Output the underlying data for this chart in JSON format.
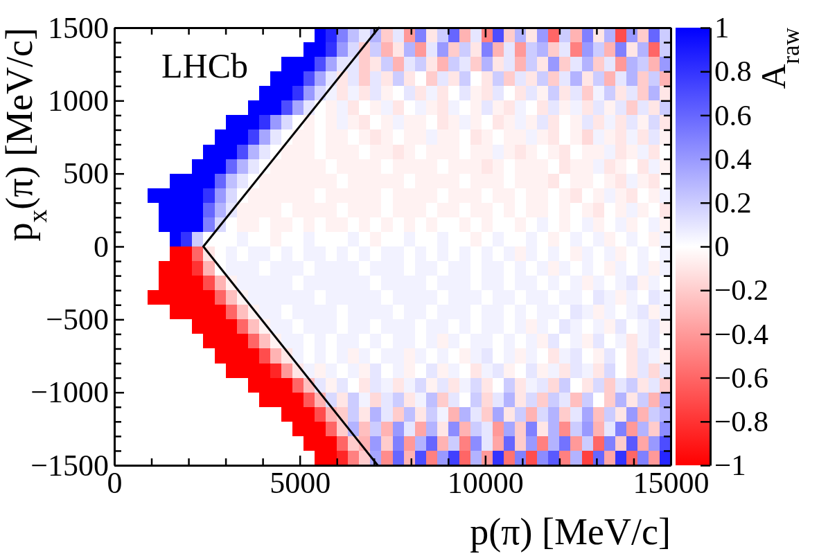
{
  "chart_data": {
    "type": "heatmap",
    "xlabel": "p(π) [MeV/c]",
    "ylabel": "p$_{x}$(π) [MeV/c]",
    "clabel": "A$_{raw}$",
    "annotations": [
      "LHCb"
    ],
    "xlim": [
      0,
      15000
    ],
    "xticks": [
      0,
      {
        "value": 1000,
        "label": null
      },
      {
        "value": 2000,
        "label": null
      },
      {
        "value": 3000,
        "label": null
      },
      {
        "value": 4000,
        "label": null
      },
      5000,
      {
        "value": 6000,
        "label": null
      },
      {
        "value": 7000,
        "label": null
      },
      {
        "value": 8000,
        "label": null
      },
      {
        "value": 9000,
        "label": null
      },
      10000,
      {
        "value": 11000,
        "label": null
      },
      {
        "value": 12000,
        "label": null
      },
      {
        "value": 13000,
        "label": null
      },
      {
        "value": 14000,
        "label": null
      },
      15000
    ],
    "ylim": [
      -1500,
      1500
    ],
    "yticks": [
      {
        "value": -1500,
        "label": "−1500"
      },
      {
        "value": -1400,
        "label": null
      },
      {
        "value": -1300,
        "label": null
      },
      {
        "value": -1200,
        "label": null
      },
      {
        "value": -1100,
        "label": null
      },
      {
        "value": -1000,
        "label": "−1000"
      },
      {
        "value": -900,
        "label": null
      },
      {
        "value": -800,
        "label": null
      },
      {
        "value": -700,
        "label": null
      },
      {
        "value": -600,
        "label": null
      },
      {
        "value": -500,
        "label": "−500"
      },
      {
        "value": -400,
        "label": null
      },
      {
        "value": -300,
        "label": null
      },
      {
        "value": -200,
        "label": null
      },
      {
        "value": -100,
        "label": null
      },
      0,
      {
        "value": 100,
        "label": null
      },
      {
        "value": 200,
        "label": null
      },
      {
        "value": 300,
        "label": null
      },
      {
        "value": 400,
        "label": null
      },
      500,
      {
        "value": 600,
        "label": null
      },
      {
        "value": 700,
        "label": null
      },
      {
        "value": 800,
        "label": null
      },
      {
        "value": 900,
        "label": null
      },
      1000,
      {
        "value": 1100,
        "label": null
      },
      {
        "value": 1200,
        "label": null
      },
      {
        "value": 1300,
        "label": null
      },
      {
        "value": 1400,
        "label": null
      },
      1500
    ],
    "clim": [
      -1,
      1
    ],
    "cticks": [
      {
        "value": -1,
        "label": "−1"
      },
      {
        "value": -0.8,
        "label": "−0.8"
      },
      {
        "value": -0.6,
        "label": "−0.6"
      },
      {
        "value": -0.4,
        "label": "−0.4"
      },
      {
        "value": -0.2,
        "label": "−0.2"
      },
      0,
      0.2,
      0.4,
      0.6,
      0.8,
      1
    ],
    "x": [
      1050,
      1350,
      1650,
      1950,
      2250,
      2550,
      2850,
      3150,
      3450,
      3750,
      4050,
      4350,
      4650,
      4950,
      5250,
      5550,
      5850,
      6150,
      6450,
      6750,
      7050,
      7350,
      7650,
      7950,
      8250,
      8550,
      8850,
      9150,
      9450,
      9750,
      10050,
      10350,
      10650,
      10950,
      11250,
      11550,
      11850,
      12150,
      12450,
      12750,
      13050,
      13350,
      13650,
      13950,
      14250,
      14550,
      14850
    ],
    "cells": [
      [
        null,
        null,
        null,
        null,
        null,
        null,
        null,
        null,
        null,
        null,
        null,
        null,
        null,
        null,
        null,
        1,
        0.85,
        0.5,
        0.25,
        0.1,
        0.3,
        -0.2,
        0.1,
        -0.4,
        0.5,
        -0.1,
        0.2,
        0.6,
        -0.3,
        0.1,
        -0.5,
        0.7,
        -0.2,
        0.3,
        -0.1,
        0.4,
        -0.6,
        0.2,
        -0.3,
        0.5,
        -0.1,
        0.3,
        -0.7,
        0.4,
        -0.2,
        0.6,
        0.2
      ],
      [
        null,
        null,
        null,
        null,
        null,
        null,
        null,
        null,
        null,
        null,
        null,
        null,
        null,
        null,
        1,
        1,
        0.8,
        0.4,
        0.15,
        -0.2,
        0.2,
        -0.3,
        -0.1,
        0.3,
        -0.4,
        0.1,
        0.4,
        -0.2,
        0.2,
        -0.1,
        0.5,
        -0.3,
        0.1,
        -0.4,
        0.2,
        0.3,
        -0.2,
        0.1,
        -0.5,
        0.4,
        0.2,
        -0.3,
        0.5,
        -0.1,
        0.3,
        -0.6,
        0.2
      ],
      [
        null,
        null,
        null,
        null,
        null,
        null,
        null,
        null,
        null,
        null,
        null,
        null,
        1,
        1,
        1,
        0.7,
        0.35,
        0.1,
        0.1,
        -0.2,
        -0.1,
        0.2,
        -0.3,
        0.1,
        0.2,
        -0.1,
        -0.3,
        0.2,
        0.1,
        -0.2,
        0.3,
        -0.1,
        0.1,
        -0.3,
        0.2,
        -0.1,
        0.4,
        -0.2,
        0.1,
        0.3,
        -0.2,
        0.1,
        -0.4,
        0.3,
        0.2,
        -0.3,
        0.4
      ],
      [
        null,
        null,
        null,
        null,
        null,
        null,
        null,
        null,
        null,
        null,
        null,
        1,
        1,
        1,
        0.7,
        0.35,
        0.1,
        -0.1,
        0.1,
        -0.2,
        0.1,
        -0.1,
        0.2,
        -0.1,
        0,
        -0.2,
        0.1,
        -0.1,
        0.2,
        0,
        -0.1,
        0.2,
        -0.2,
        0.1,
        -0.1,
        0.2,
        -0.2,
        0.1,
        0.3,
        -0.1,
        0.2,
        -0.3,
        0.1,
        0.3,
        -0.2,
        0.2,
        -0.3
      ],
      [
        null,
        null,
        null,
        null,
        null,
        null,
        null,
        null,
        null,
        null,
        1,
        1,
        1,
        0.8,
        0.4,
        0.15,
        0.05,
        -0.1,
        0.05,
        -0.1,
        0.1,
        -0.05,
        0,
        0.1,
        -0.1,
        0.05,
        -0.1,
        0,
        0.1,
        -0.05,
        -0.1,
        0.1,
        0,
        -0.1,
        0.1,
        -0.05,
        0.2,
        -0.1,
        0.1,
        -0.2,
        0.05,
        0.2,
        -0.1,
        0.1,
        -0.2,
        0.3,
        -0.1
      ],
      [
        null,
        null,
        null,
        null,
        null,
        null,
        null,
        null,
        null,
        1,
        1,
        1,
        0.7,
        0.35,
        0.1,
        0,
        -0.05,
        0.05,
        -0.1,
        0,
        -0.05,
        0.05,
        -0.1,
        0,
        0.05,
        -0.05,
        -0.1,
        0.05,
        0,
        -0.05,
        0.1,
        -0.05,
        -0.1,
        0.05,
        0,
        -0.1,
        0.1,
        -0.05,
        0.05,
        -0.1,
        0.1,
        -0.05,
        0.1,
        -0.2,
        0.1,
        -0.1,
        0.2
      ],
      [
        null,
        null,
        null,
        null,
        null,
        null,
        null,
        1,
        1,
        1,
        0.8,
        0.4,
        0.15,
        0,
        -0.05,
        0,
        -0.05,
        0.05,
        -0.05,
        -0.1,
        0,
        -0.05,
        0.05,
        -0.05,
        -0.05,
        0,
        -0.1,
        -0.05,
        0.05,
        -0.05,
        0,
        -0.1,
        -0.05,
        0.05,
        -0.05,
        0.1,
        -0.1,
        0,
        -0.05,
        0.1,
        -0.1,
        0.05,
        -0.1,
        0.1,
        -0.05,
        0.15,
        -0.1
      ],
      [
        null,
        null,
        null,
        null,
        null,
        null,
        1,
        1,
        1,
        0.75,
        0.35,
        0.1,
        0,
        -0.05,
        -0.05,
        0,
        -0.05,
        -0.05,
        0,
        -0.05,
        -0.1,
        -0.05,
        0,
        -0.05,
        -0.05,
        0.05,
        -0.05,
        -0.05,
        0,
        -0.1,
        -0.05,
        0,
        -0.05,
        -0.05,
        0.05,
        -0.05,
        -0.1,
        0,
        -0.05,
        -0.15,
        0.05,
        -0.05,
        -0.1,
        0.05,
        -0.1,
        0.1,
        -0.05
      ],
      [
        null,
        null,
        null,
        null,
        null,
        1,
        1,
        1,
        0.7,
        0.3,
        0.1,
        0,
        -0.05,
        -0.05,
        -0.05,
        0,
        -0.05,
        -0.05,
        -0.05,
        0,
        -0.05,
        -0.05,
        -0.1,
        -0.05,
        0,
        -0.05,
        -0.05,
        -0.05,
        0,
        -0.05,
        -0.05,
        0.05,
        -0.05,
        -0.1,
        -0.05,
        0,
        -0.05,
        -0.1,
        0,
        -0.05,
        -0.05,
        0.05,
        -0.1,
        -0.05,
        0.05,
        -0.1,
        0
      ],
      [
        null,
        null,
        null,
        null,
        1,
        1,
        1,
        0.6,
        0.3,
        0.1,
        0,
        -0.05,
        -0.05,
        -0.05,
        -0.05,
        -0.05,
        0,
        -0.05,
        -0.05,
        -0.05,
        -0.05,
        0,
        -0.05,
        -0.05,
        -0.05,
        -0.05,
        0,
        -0.05,
        -0.05,
        -0.05,
        -0.1,
        -0.05,
        0,
        -0.05,
        -0.05,
        -0.05,
        0,
        -0.1,
        -0.05,
        -0.05,
        0.05,
        -0.1,
        -0.05,
        0,
        -0.1,
        0.05,
        -0.05
      ],
      [
        null,
        null,
        1,
        1,
        1,
        1,
        0.6,
        0.25,
        0.1,
        0,
        -0.05,
        -0.05,
        -0.05,
        -0.05,
        -0.05,
        -0.05,
        -0.05,
        0,
        -0.05,
        -0.05,
        -0.05,
        -0.05,
        -0.05,
        0,
        -0.05,
        -0.05,
        -0.05,
        -0.05,
        0,
        -0.05,
        -0.05,
        -0.05,
        0,
        -0.05,
        -0.05,
        -0.05,
        -0.1,
        0,
        -0.05,
        -0.05,
        0,
        -0.05,
        -0.1,
        0.05,
        -0.05,
        -0.1,
        0
      ],
      [
        1,
        1,
        1,
        1,
        1,
        0.8,
        0.4,
        0.15,
        0,
        -0.05,
        -0.05,
        -0.05,
        -0.05,
        -0.05,
        -0.05,
        0,
        -0.05,
        -0.05,
        -0.05,
        -0.05,
        -0.05,
        0,
        -0.05,
        -0.05,
        -0.05,
        -0.05,
        0,
        -0.05,
        -0.05,
        -0.05,
        0,
        -0.05,
        -0.05,
        0,
        -0.05,
        -0.05,
        0,
        -0.05,
        -0.1,
        0,
        -0.05,
        0.05,
        -0.05,
        -0.1,
        0,
        -0.05,
        0.05
      ],
      [
        null,
        1,
        1,
        1,
        1,
        0.6,
        0.3,
        0.1,
        -0.05,
        -0.05,
        -0.05,
        -0.05,
        0,
        -0.05,
        -0.05,
        -0.05,
        -0.05,
        0,
        -0.05,
        -0.05,
        -0.05,
        0,
        -0.05,
        -0.05,
        -0.05,
        0,
        -0.05,
        -0.05,
        0,
        -0.05,
        -0.05,
        0,
        -0.05,
        0,
        -0.05,
        -0.05,
        0,
        -0.05,
        0,
        -0.05,
        -0.1,
        0,
        -0.05,
        0.05,
        -0.05,
        0,
        -0.1
      ],
      [
        null,
        1,
        1,
        1,
        1,
        0.5,
        0.15,
        0,
        -0.05,
        -0.05,
        0,
        -0.05,
        -0.05,
        0,
        -0.05,
        0,
        -0.05,
        -0.05,
        0,
        -0.05,
        0,
        -0.05,
        0,
        -0.05,
        0,
        -0.05,
        0,
        0,
        -0.05,
        0,
        -0.05,
        0,
        0,
        -0.05,
        0,
        0.05,
        0,
        -0.05,
        0,
        0.05,
        -0.05,
        0,
        0.05,
        -0.05,
        0,
        0.05,
        -0.05
      ],
      [
        null,
        null,
        1,
        0.8,
        0.2,
        0,
        0,
        0,
        0.05,
        0,
        0,
        -0.05,
        0,
        0,
        0.05,
        0,
        0,
        0,
        0.05,
        0,
        -0.05,
        0,
        0,
        0.05,
        0,
        0,
        0.05,
        0,
        0,
        -0.05,
        0,
        0.05,
        0,
        0,
        0.05,
        0,
        -0.05,
        0,
        0.05,
        0,
        0.05,
        -0.05,
        0,
        0.05,
        0,
        -0.05,
        0.05
      ],
      [
        null,
        null,
        -1,
        -1,
        -0.6,
        -0.1,
        0,
        0.05,
        0,
        0.05,
        0.05,
        0,
        0.05,
        0,
        0.05,
        0.05,
        0,
        0.05,
        0,
        0.05,
        0,
        0.05,
        0.05,
        0,
        0.05,
        0,
        0.05,
        0,
        0.05,
        0,
        0.05,
        0,
        0.05,
        -0.05,
        0.05,
        0,
        0.05,
        0,
        -0.05,
        0.05,
        0,
        0.05,
        -0.05,
        0,
        0.05,
        0,
        0.05
      ],
      [
        null,
        -1,
        -1,
        -1,
        -0.8,
        -0.3,
        0,
        0.05,
        0.05,
        0.05,
        0,
        0.05,
        0.05,
        0.05,
        0,
        0.05,
        0.05,
        0.05,
        0.05,
        0,
        0.05,
        0.05,
        0.05,
        0,
        0.05,
        0.05,
        0,
        0.05,
        0.05,
        0,
        0.05,
        0.05,
        0,
        0.05,
        0,
        0.05,
        -0.05,
        0.05,
        0,
        0.05,
        0,
        -0.05,
        0.05,
        0,
        0.05,
        -0.05,
        0.05
      ],
      [
        null,
        -1,
        -1,
        -1,
        -1,
        -0.7,
        -0.3,
        -0.05,
        0.05,
        0.05,
        0.05,
        0.05,
        0.05,
        0,
        0.05,
        0.05,
        0.05,
        0.05,
        0.05,
        0.05,
        0,
        0.05,
        0.05,
        0.05,
        0.05,
        0,
        0.05,
        0.05,
        0.05,
        0,
        0.05,
        0.05,
        0,
        0.05,
        0.05,
        0,
        0.05,
        0,
        0.05,
        -0.05,
        0.05,
        0,
        0.05,
        0.1,
        -0.05,
        0.05,
        0
      ],
      [
        -1,
        -1,
        -1,
        -1,
        -1,
        -1,
        -0.6,
        -0.25,
        -0.05,
        0.05,
        0.05,
        0.05,
        0.05,
        0.05,
        0.05,
        0,
        0.05,
        0.05,
        0.05,
        0.05,
        0.05,
        0,
        0.05,
        0.05,
        0.05,
        0.05,
        0,
        0.05,
        0.05,
        0.05,
        0,
        0.05,
        0.05,
        0,
        0.05,
        0.05,
        0,
        0.05,
        0.05,
        0,
        0.1,
        0.05,
        -0.05,
        0.05,
        0,
        0.1,
        0.05
      ],
      [
        null,
        null,
        -1,
        -1,
        -1,
        -1,
        -1,
        -0.6,
        -0.25,
        -0.05,
        0.05,
        0.05,
        0,
        0.05,
        0.05,
        0.05,
        0.05,
        0,
        0.05,
        0.05,
        0.05,
        0.05,
        0,
        0.05,
        0.05,
        0,
        0.05,
        0.05,
        0.05,
        0,
        0.05,
        0.05,
        0,
        0.05,
        0,
        0.05,
        0.05,
        0,
        0.1,
        0.05,
        -0.05,
        0.05,
        0,
        0.05,
        0.1,
        -0.05,
        0.05
      ],
      [
        null,
        null,
        null,
        null,
        -1,
        -1,
        -1,
        -1,
        -0.6,
        -0.25,
        -0.05,
        0.05,
        0.05,
        0,
        0.05,
        0.05,
        0.05,
        0,
        0.05,
        0.05,
        0,
        0.05,
        0.05,
        0.05,
        0,
        0.05,
        0.05,
        0,
        0.05,
        0,
        0.05,
        0.05,
        0,
        0.05,
        -0.05,
        0.05,
        0,
        0.1,
        0.05,
        0,
        0.05,
        -0.05,
        0.1,
        0,
        0.05,
        0.1,
        -0.05
      ],
      [
        null,
        null,
        null,
        null,
        null,
        -1,
        -1,
        -1,
        -1,
        -0.6,
        -0.25,
        -0.05,
        0.05,
        0.05,
        0,
        0.05,
        0,
        0.05,
        0.05,
        0,
        0.05,
        0,
        0.05,
        0.05,
        0,
        0.05,
        -0.05,
        0.05,
        0,
        0.05,
        0.05,
        0,
        0.05,
        0,
        0.05,
        -0.05,
        0.1,
        0,
        0.05,
        -0.05,
        0.1,
        0,
        0.05,
        -0.1,
        0.05,
        0.1,
        0
      ],
      [
        null,
        null,
        null,
        null,
        null,
        null,
        -1,
        -1,
        -1,
        -1,
        -0.7,
        -0.3,
        -0.1,
        0.05,
        0,
        0.05,
        0,
        0.05,
        -0.05,
        0.05,
        0,
        0.05,
        0.05,
        -0.05,
        0.05,
        0,
        0.05,
        0,
        -0.05,
        0.05,
        0.1,
        0,
        0.05,
        -0.05,
        0.05,
        0,
        -0.1,
        0.05,
        0.1,
        0,
        -0.05,
        0.1,
        0,
        -0.1,
        0.1,
        0.05,
        -0.05
      ],
      [
        null,
        null,
        null,
        null,
        null,
        null,
        null,
        -1,
        -1,
        -1,
        -1,
        -0.85,
        -0.4,
        -0.1,
        0.05,
        -0.05,
        0.05,
        0,
        0.05,
        -0.05,
        0.1,
        0,
        0.05,
        -0.05,
        0,
        0.1,
        -0.05,
        0.05,
        0,
        -0.1,
        0.05,
        0.1,
        -0.05,
        0,
        0.1,
        -0.05,
        0.05,
        -0.1,
        0.1,
        0.05,
        -0.1,
        0.15,
        0,
        -0.1,
        0.1,
        -0.15,
        0.1
      ],
      [
        null,
        null,
        null,
        null,
        null,
        null,
        null,
        null,
        null,
        -1,
        -1,
        -1,
        -1,
        -0.6,
        -0.25,
        0.1,
        -0.05,
        0.1,
        0,
        -0.1,
        0.1,
        0.05,
        -0.1,
        0.05,
        0.15,
        -0.05,
        0.1,
        -0.1,
        0.05,
        0.15,
        -0.1,
        0,
        0.2,
        -0.1,
        0.05,
        0.1,
        -0.15,
        0.2,
        0,
        -0.1,
        0.15,
        -0.2,
        0.1,
        0.2,
        -0.1,
        0.1,
        -0.2
      ],
      [
        null,
        null,
        null,
        null,
        null,
        null,
        null,
        null,
        null,
        null,
        -1,
        -1,
        -1,
        -1,
        -0.65,
        -0.3,
        0.15,
        -0.1,
        0.2,
        0.05,
        -0.15,
        0.1,
        0.2,
        -0.1,
        0.05,
        0.25,
        -0.2,
        0.1,
        0,
        0.2,
        -0.15,
        0.1,
        0.3,
        -0.1,
        0.15,
        -0.2,
        0.2,
        0.1,
        -0.25,
        0.2,
        0,
        -0.2,
        0.3,
        -0.1,
        0.2,
        -0.3,
        0.35
      ],
      [
        null,
        null,
        null,
        null,
        null,
        null,
        null,
        null,
        null,
        null,
        null,
        null,
        -1,
        -1,
        -1,
        -0.7,
        -0.3,
        -0.2,
        0.2,
        -0.1,
        0.3,
        0.1,
        -0.2,
        0.25,
        -0.1,
        0.2,
        0.05,
        -0.3,
        0.3,
        0.1,
        -0.2,
        0.35,
        -0.1,
        0.2,
        -0.3,
        0.15,
        0.3,
        -0.2,
        0.1,
        0.35,
        -0.25,
        0.2,
        -0.1,
        0.4,
        -0.3,
        0.2,
        0.3
      ],
      [
        null,
        null,
        null,
        null,
        null,
        null,
        null,
        null,
        null,
        null,
        null,
        null,
        null,
        -1,
        -1,
        -1,
        -0.6,
        -0.2,
        0.3,
        -0.25,
        0.2,
        -0.3,
        0.4,
        0.1,
        -0.35,
        0.3,
        -0.1,
        0.45,
        -0.3,
        0.2,
        0.1,
        -0.4,
        0.35,
        -0.2,
        0.5,
        -0.1,
        0.3,
        -0.45,
        0.2,
        0.4,
        -0.3,
        0.1,
        0.5,
        -0.4,
        0.3,
        -0.2,
        0.45
      ],
      [
        null,
        null,
        null,
        null,
        null,
        null,
        null,
        null,
        null,
        null,
        null,
        null,
        null,
        null,
        -1,
        -1,
        -1,
        -0.6,
        -0.2,
        -0.3,
        0.4,
        -0.2,
        0.5,
        -0.4,
        0.3,
        0.6,
        -0.3,
        0.2,
        -0.5,
        0.45,
        0.1,
        -0.35,
        0.6,
        -0.2,
        0.4,
        -0.5,
        0.3,
        0.55,
        -0.4,
        0.2,
        -0.6,
        0.5,
        -0.2,
        0.65,
        -0.35,
        0.4,
        0.7
      ],
      [
        null,
        null,
        null,
        null,
        null,
        null,
        null,
        null,
        null,
        null,
        null,
        null,
        null,
        null,
        null,
        -1,
        -1,
        -0.85,
        -0.5,
        -0.2,
        0.35,
        -0.45,
        0.6,
        -0.3,
        0.7,
        -0.5,
        0.4,
        0.75,
        -0.6,
        0.3,
        -0.4,
        0.8,
        -0.55,
        0.5,
        -0.7,
        0.45,
        0.65,
        -0.5,
        0.3,
        -0.75,
        0.6,
        -0.35,
        0.8,
        -0.6,
        0.5,
        -0.4,
        0.85
      ]
    ],
    "series": [
      {
        "type": "line",
        "x": [
          7130,
          2400,
          7100
        ],
        "values": [
          1500,
          0,
          -1500
        ],
        "color": "#000000"
      }
    ]
  }
}
